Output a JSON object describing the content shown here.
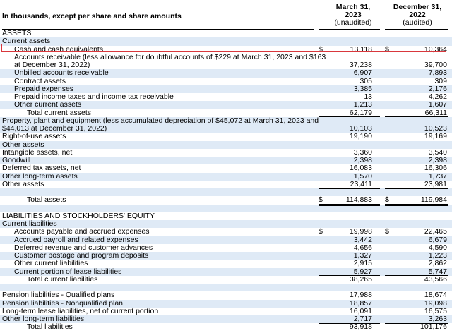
{
  "header": {
    "caption": "In thousands, except per share and share amounts",
    "col1": {
      "line1": "March 31,",
      "line2": "2023",
      "line3": "(unaudited)"
    },
    "col2": {
      "line1": "December 31,",
      "line2": "2022",
      "line3": "(audited)"
    }
  },
  "rows": [
    {
      "label": "ASSETS",
      "indent": 0
    },
    {
      "label": "Current assets",
      "indent": 0,
      "shade": true
    },
    {
      "label": "Cash and cash equivalents",
      "indent": 1,
      "v1": "13,118",
      "v2": "10,364",
      "dollar": "$",
      "highlight": true
    },
    {
      "label": "Accounts receivable (less allowance for doubtful accounts of $229 at March 31, 2023 and $163",
      "indent": 1
    },
    {
      "label": "at December 31, 2022)",
      "indent": 1,
      "v1": "37,238",
      "v2": "39,700"
    },
    {
      "label": "Unbilled accounts receivable",
      "indent": 1,
      "v1": "6,907",
      "v2": "7,893",
      "shade": true
    },
    {
      "label": "Contract assets",
      "indent": 1,
      "v1": "305",
      "v2": "309"
    },
    {
      "label": "Prepaid expenses",
      "indent": 1,
      "v1": "3,385",
      "v2": "2,176",
      "shade": true
    },
    {
      "label": "Prepaid income taxes and income tax receivable",
      "indent": 1,
      "v1": "13",
      "v2": "4,262"
    },
    {
      "label": "Other current assets",
      "indent": 1,
      "v1": "1,213",
      "v2": "1,607",
      "shade": true
    },
    {
      "label": "Total current assets",
      "indent": 2,
      "v1": "62,179",
      "v2": "66,311"
    },
    {
      "label": "Property, plant and equipment (less accumulated depreciation of $45,072 at March 31, 2023 and",
      "indent": 0,
      "shade": true
    },
    {
      "label": "$44,013 at December 31, 2022)",
      "indent": 0,
      "v1": "10,103",
      "v2": "10,523",
      "shade": true
    },
    {
      "label": "Right-of-use assets",
      "indent": 0,
      "v1": "19,190",
      "v2": "19,169"
    },
    {
      "label": "Other assets",
      "indent": 0,
      "shade": true
    },
    {
      "label": "Intangible assets, net",
      "indent": 0,
      "v1": "3,360",
      "v2": "3,540"
    },
    {
      "label": "Goodwill",
      "indent": 0,
      "v1": "2,398",
      "v2": "2,398",
      "shade": true
    },
    {
      "label": "Deferred tax assets, net",
      "indent": 0,
      "v1": "16,083",
      "v2": "16,306"
    },
    {
      "label": "Other long-term assets",
      "indent": 0,
      "v1": "1,570",
      "v2": "1,737",
      "shade": true
    },
    {
      "label": "Other assets",
      "indent": 0,
      "v1": "23,411",
      "v2": "23,981"
    },
    {
      "label": "",
      "indent": 0,
      "shade": true
    },
    {
      "label": "Total assets",
      "indent": 2,
      "v1": "114,883",
      "v2": "119,984",
      "dollar": "$",
      "total": true
    },
    {
      "label": "",
      "indent": 0,
      "shade": true
    },
    {
      "label": "LIABILITIES AND STOCKHOLDERS' EQUITY",
      "indent": 0
    },
    {
      "label": "Current liabilities",
      "indent": 0,
      "shade": true
    },
    {
      "label": "Accounts payable and accrued expenses",
      "indent": 1,
      "v1": "19,998",
      "v2": "22,465",
      "dollar": "$"
    },
    {
      "label": "Accrued payroll and related expenses",
      "indent": 1,
      "v1": "3,442",
      "v2": "6,679",
      "shade": true
    },
    {
      "label": "Deferred revenue and customer advances",
      "indent": 1,
      "v1": "4,656",
      "v2": "4,590"
    },
    {
      "label": "Customer postage and program deposits",
      "indent": 1,
      "v1": "1,327",
      "v2": "1,223",
      "shade": true
    },
    {
      "label": "Other current liabilities",
      "indent": 1,
      "v1": "2,915",
      "v2": "2,862"
    },
    {
      "label": "Current portion of lease liabilities",
      "indent": 1,
      "v1": "5,927",
      "v2": "5,747",
      "shade": true
    },
    {
      "label": "Total current liabilities",
      "indent": 2,
      "v1": "38,265",
      "v2": "43,566"
    },
    {
      "label": "",
      "indent": 0,
      "shade": true
    },
    {
      "label": "Pension liabilities - Qualified plans",
      "indent": 0,
      "v1": "17,988",
      "v2": "18,674"
    },
    {
      "label": "Pension liabilities - Nonqualified plan",
      "indent": 0,
      "v1": "18,857",
      "v2": "19,098",
      "shade": true
    },
    {
      "label": "Long-term lease liabilities, net of current portion",
      "indent": 0,
      "v1": "16,091",
      "v2": "16,575"
    },
    {
      "label": "Other long-term liabilities",
      "indent": 0,
      "v1": "2,717",
      "v2": "3,263",
      "shade": true
    },
    {
      "label": "Total liabilities",
      "indent": 2,
      "v1": "93,918",
      "v2": "101,176"
    }
  ]
}
